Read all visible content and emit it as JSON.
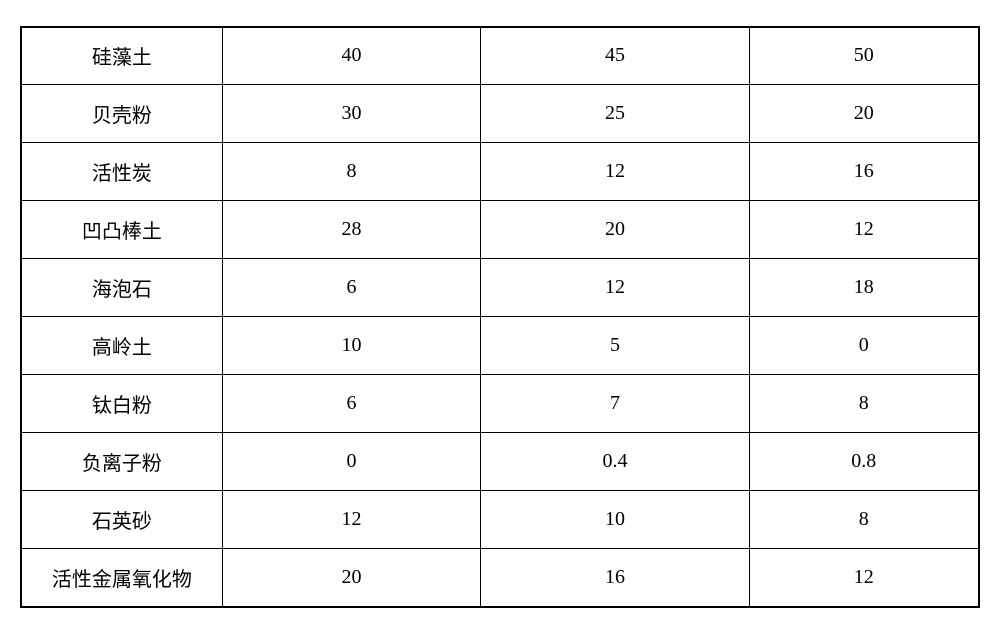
{
  "table": {
    "background_color": "#ffffff",
    "border_color": "#000000",
    "text_color": "#000000",
    "font_size": 20,
    "columns": [
      {
        "key": "label",
        "width": "21%",
        "align": "center"
      },
      {
        "key": "a",
        "width": "27%",
        "align": "center"
      },
      {
        "key": "b",
        "width": "28%",
        "align": "center"
      },
      {
        "key": "c",
        "width": "24%",
        "align": "center"
      }
    ],
    "rows": [
      {
        "label": "硅藻土",
        "a": "40",
        "b": "45",
        "c": "50"
      },
      {
        "label": "贝壳粉",
        "a": "30",
        "b": "25",
        "c": "20"
      },
      {
        "label": "活性炭",
        "a": "8",
        "b": "12",
        "c": "16"
      },
      {
        "label": "凹凸棒土",
        "a": "28",
        "b": "20",
        "c": "12"
      },
      {
        "label": "海泡石",
        "a": "6",
        "b": "12",
        "c": "18"
      },
      {
        "label": "高岭土",
        "a": "10",
        "b": "5",
        "c": "0"
      },
      {
        "label": "钛白粉",
        "a": "6",
        "b": "7",
        "c": "8"
      },
      {
        "label": "负离子粉",
        "a": "0",
        "b": "0.4",
        "c": "0.8"
      },
      {
        "label": "石英砂",
        "a": "12",
        "b": "10",
        "c": "8"
      },
      {
        "label": "活性金属氧化物",
        "a": "20",
        "b": "16",
        "c": "12"
      }
    ]
  }
}
